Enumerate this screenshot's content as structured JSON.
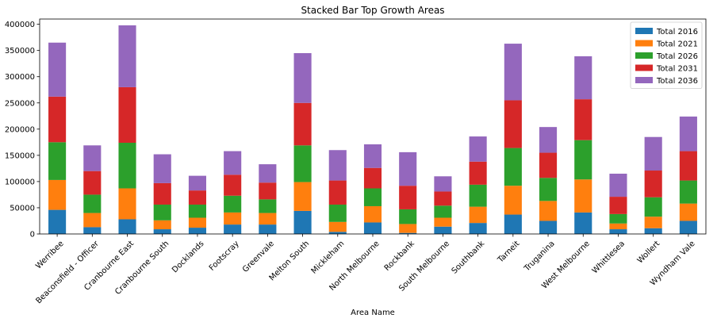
{
  "chart_data": {
    "type": "bar",
    "stacked": true,
    "title": "Stacked Bar Top Growth Areas",
    "xlabel": "Area Name",
    "ylabel": "",
    "ylim": [
      0,
      410000
    ],
    "yticks": [
      0,
      50000,
      100000,
      150000,
      200000,
      250000,
      300000,
      350000,
      400000
    ],
    "legend_position": "top-right",
    "grid": false,
    "categories": [
      "Werribee",
      "Beaconsfield - Officer",
      "Cranbourne East",
      "Cranbourne South",
      "Docklands",
      "Footscray",
      "Greenvale",
      "Melton South",
      "Mickleham",
      "North Melbourne",
      "Rockbank",
      "South Melbourne",
      "Southbank",
      "Tarneit",
      "Truganina",
      "West Melbourne",
      "Whittlesea",
      "Wollert",
      "Wyndham Vale"
    ],
    "series": [
      {
        "name": "Total 2016",
        "color": "#1f77b4",
        "values": [
          46000,
          13000,
          28000,
          9000,
          12000,
          18000,
          18000,
          44000,
          4000,
          22000,
          2000,
          14000,
          21000,
          37000,
          25000,
          41000,
          9000,
          11000,
          25000
        ]
      },
      {
        "name": "Total 2021",
        "color": "#ff7f0e",
        "values": [
          57000,
          27000,
          59000,
          17000,
          19000,
          23000,
          22000,
          55000,
          19000,
          31000,
          17000,
          17000,
          31000,
          55000,
          38000,
          63000,
          11000,
          22000,
          33000
        ]
      },
      {
        "name": "Total 2026",
        "color": "#2ca02c",
        "values": [
          72000,
          35000,
          87000,
          30000,
          25000,
          32000,
          26000,
          70000,
          33000,
          34000,
          28000,
          23000,
          42000,
          72000,
          44000,
          75000,
          18000,
          37000,
          44000
        ]
      },
      {
        "name": "Total 2031",
        "color": "#d62728",
        "values": [
          87000,
          45000,
          106000,
          41000,
          27000,
          40000,
          32000,
          81000,
          46000,
          39000,
          45000,
          27000,
          44000,
          91000,
          48000,
          78000,
          33000,
          51000,
          56000
        ]
      },
      {
        "name": "Total 2036",
        "color": "#9467bd",
        "values": [
          103000,
          49000,
          118000,
          55000,
          28000,
          45000,
          35000,
          95000,
          58000,
          45000,
          64000,
          29000,
          48000,
          108000,
          49000,
          82000,
          44000,
          64000,
          66000
        ]
      }
    ]
  }
}
